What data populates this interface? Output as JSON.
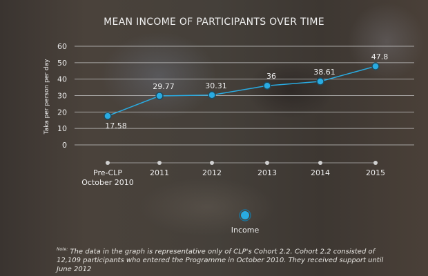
{
  "chart_data": {
    "type": "line",
    "title": "MEAN INCOME OF PARTICIPANTS OVER TIME",
    "ylabel": "Taka per person per day",
    "xlabel": "",
    "ylim": [
      0,
      60
    ],
    "yticks": [
      0,
      10,
      20,
      30,
      40,
      50,
      60
    ],
    "categories": [
      "Pre-CLP\nOctober 2010",
      "2011",
      "2012",
      "2013",
      "2014",
      "2015"
    ],
    "series": [
      {
        "name": "Income",
        "values": [
          17.58,
          29.77,
          30.31,
          36,
          38.61,
          47.8
        ],
        "labels": [
          "17.58",
          "29.77",
          "30.31",
          "36",
          "38.61",
          "47.8"
        ]
      }
    ],
    "grid": true,
    "legend": "bottom-center",
    "colors": {
      "line": "#29abe2",
      "grid": "#c8c8c8",
      "text": "#eeeeee"
    }
  },
  "note": {
    "prefix": "Note:",
    "text": "The data in the graph is representative only of CLP's Cohort 2.2. Cohort 2.2 consisted of 12,109 participants who entered the Programme in October 2010. They received support until June 2012"
  }
}
